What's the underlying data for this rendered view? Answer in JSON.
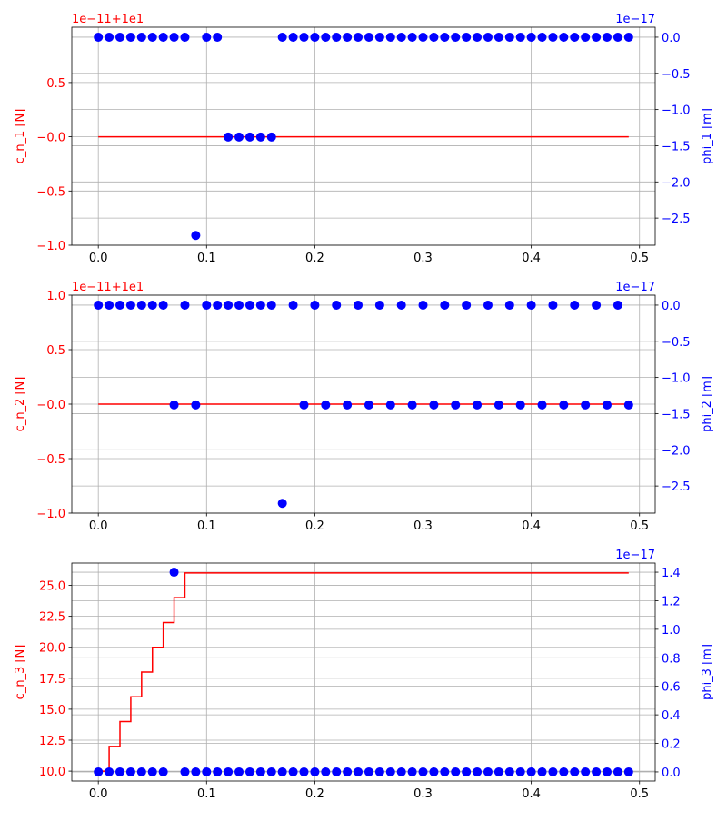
{
  "chart_data": [
    {
      "type": "line",
      "x": [
        0,
        0.01,
        0.02,
        0.03,
        0.04,
        0.05,
        0.06,
        0.07,
        0.08,
        0.09,
        0.1,
        0.11,
        0.12,
        0.13,
        0.14,
        0.15,
        0.16,
        0.17,
        0.18,
        0.19,
        0.2,
        0.21,
        0.22,
        0.23,
        0.24,
        0.25,
        0.26,
        0.27,
        0.28,
        0.29,
        0.3,
        0.31,
        0.32,
        0.33,
        0.34,
        0.35,
        0.36,
        0.37,
        0.38,
        0.39,
        0.4,
        0.41,
        0.42,
        0.43,
        0.44,
        0.45,
        0.46,
        0.47,
        0.48,
        0.49
      ],
      "ylabel": "c_n_1 [N]",
      "y2label": "phi_1 [m]",
      "y_offset_text": "1e−11+1e1",
      "y2_offset_text": "1e−17",
      "xlim": [
        -0.0245,
        0.5145
      ],
      "xticks": [
        {
          "value": 0,
          "label": "0.0"
        },
        0.1,
        0.2,
        0.3,
        0.4,
        0.5
      ],
      "ylim": [
        -1,
        1.01
      ],
      "yticks": [
        {
          "value": -1,
          "label": "−1.0"
        },
        {
          "value": -0.5,
          "label": "−0.5"
        },
        {
          "value": 0,
          "label": "−0.0"
        },
        0.5
      ],
      "y2lim": [
        -2.875,
        0.1375
      ],
      "y2ticks": [
        {
          "value": -2.5,
          "label": "−2.5"
        },
        {
          "value": -2,
          "label": "−2.0"
        },
        {
          "value": -1.5,
          "label": "−1.5"
        },
        {
          "value": -1,
          "label": "−1.0"
        },
        {
          "value": -0.5,
          "label": "−0.5"
        },
        {
          "value": 0,
          "label": "0.0"
        }
      ],
      "grid": true,
      "series": [
        {
          "color": "#ff0000",
          "drawstyle": "default",
          "values": [
            0,
            0,
            0,
            0,
            0,
            0,
            0,
            0,
            0,
            0,
            0,
            0,
            0,
            0,
            0,
            0,
            0,
            0,
            0,
            0,
            0,
            0,
            0,
            0,
            0,
            0,
            0,
            0,
            0,
            0,
            0,
            0,
            0,
            0,
            0,
            0,
            0,
            0,
            0,
            0,
            0,
            0,
            0,
            0,
            0,
            0,
            0,
            0,
            0,
            0
          ]
        },
        {
          "color": "#0000ff",
          "axis": "y2",
          "marker": "o",
          "values": [
            0,
            0,
            0,
            0,
            0,
            0,
            0,
            0,
            0,
            -2.74,
            0,
            0,
            -1.38,
            -1.38,
            -1.38,
            -1.38,
            -1.38,
            0,
            0,
            0,
            0,
            0,
            0,
            0,
            0,
            0,
            0,
            0,
            0,
            0,
            0,
            0,
            0,
            0,
            0,
            0,
            0,
            0,
            0,
            0,
            0,
            0,
            0,
            0,
            0,
            0,
            0,
            0,
            0,
            0
          ]
        }
      ]
    },
    {
      "type": "line",
      "x": [
        0,
        0.01,
        0.02,
        0.03,
        0.04,
        0.05,
        0.06,
        0.07,
        0.08,
        0.09,
        0.1,
        0.11,
        0.12,
        0.13,
        0.14,
        0.15,
        0.16,
        0.17,
        0.18,
        0.19,
        0.2,
        0.21,
        0.22,
        0.23,
        0.24,
        0.25,
        0.26,
        0.27,
        0.28,
        0.29,
        0.3,
        0.31,
        0.32,
        0.33,
        0.34,
        0.35,
        0.36,
        0.37,
        0.38,
        0.39,
        0.4,
        0.41,
        0.42,
        0.43,
        0.44,
        0.45,
        0.46,
        0.47,
        0.48,
        0.49
      ],
      "ylabel": "c_n_2 [N]",
      "y2label": "phi_2 [m]",
      "y_offset_text": "1e−11+1e1",
      "y2_offset_text": "1e−17",
      "xlim": [
        -0.0245,
        0.5145
      ],
      "xticks": [
        {
          "value": 0,
          "label": "0.0"
        },
        0.1,
        0.2,
        0.3,
        0.4,
        0.5
      ],
      "ylim": [
        -1,
        1
      ],
      "yticks": [
        {
          "value": -1,
          "label": "−1.0"
        },
        {
          "value": -0.5,
          "label": "−0.5"
        },
        {
          "value": 0,
          "label": "−0.0"
        },
        0.5,
        {
          "value": 1,
          "label": "1.0"
        }
      ],
      "y2lim": [
        -2.875,
        0.1375
      ],
      "y2ticks": [
        {
          "value": -2.5,
          "label": "−2.5"
        },
        {
          "value": -2,
          "label": "−2.0"
        },
        {
          "value": -1.5,
          "label": "−1.5"
        },
        {
          "value": -1,
          "label": "−1.0"
        },
        {
          "value": -0.5,
          "label": "−0.5"
        },
        {
          "value": 0,
          "label": "0.0"
        }
      ],
      "grid": true,
      "series": [
        {
          "color": "#ff0000",
          "drawstyle": "default",
          "values": [
            0,
            0,
            0,
            0,
            0,
            0,
            0,
            0,
            0,
            0,
            0,
            0,
            0,
            0,
            0,
            0,
            0,
            0,
            0,
            0,
            0,
            0,
            0,
            0,
            0,
            0,
            0,
            0,
            0,
            0,
            0,
            0,
            0,
            0,
            0,
            0,
            0,
            0,
            0,
            0,
            0,
            0,
            0,
            0,
            0,
            0,
            0,
            0,
            0,
            0
          ]
        },
        {
          "color": "#0000ff",
          "axis": "y2",
          "marker": "o",
          "values": [
            0,
            0,
            0,
            0,
            0,
            0,
            0,
            -1.38,
            0,
            -1.38,
            0,
            0,
            0,
            0,
            0,
            0,
            0,
            -2.74,
            0,
            -1.38,
            0,
            -1.38,
            0,
            -1.38,
            0,
            -1.38,
            0,
            -1.38,
            0,
            -1.38,
            0,
            -1.38,
            0,
            -1.38,
            0,
            -1.38,
            0,
            -1.38,
            0,
            -1.38,
            0,
            -1.38,
            0,
            -1.38,
            0,
            -1.38,
            0,
            -1.38,
            0,
            -1.38
          ]
        }
      ]
    },
    {
      "type": "line",
      "x": [
        0,
        0.01,
        0.02,
        0.03,
        0.04,
        0.05,
        0.06,
        0.07,
        0.08,
        0.09,
        0.1,
        0.11,
        0.12,
        0.13,
        0.14,
        0.15,
        0.16,
        0.17,
        0.18,
        0.19,
        0.2,
        0.21,
        0.22,
        0.23,
        0.24,
        0.25,
        0.26,
        0.27,
        0.28,
        0.29,
        0.3,
        0.31,
        0.32,
        0.33,
        0.34,
        0.35,
        0.36,
        0.37,
        0.38,
        0.39,
        0.4,
        0.41,
        0.42,
        0.43,
        0.44,
        0.45,
        0.46,
        0.47,
        0.48,
        0.49
      ],
      "ylabel": "c_n_3 [N]",
      "y2label": "phi_3 [m]",
      "y2_offset_text": "1e−17",
      "xlim": [
        -0.0245,
        0.5145
      ],
      "xticks": [
        {
          "value": 0,
          "label": "0.0"
        },
        0.1,
        0.2,
        0.3,
        0.4,
        0.5
      ],
      "ylim": [
        9.2,
        26.8
      ],
      "yticks": [
        {
          "value": 10,
          "label": "10.0"
        },
        12.5,
        {
          "value": 15,
          "label": "15.0"
        },
        17.5,
        {
          "value": 20,
          "label": "20.0"
        },
        22.5,
        {
          "value": 25,
          "label": "25.0"
        }
      ],
      "y2lim": [
        -0.064,
        1.464
      ],
      "y2ticks": [
        {
          "value": 0,
          "label": "0.0"
        },
        0.2,
        0.4,
        0.6,
        0.8,
        {
          "value": 1,
          "label": "1.0"
        },
        1.2,
        1.4
      ],
      "grid": true,
      "series": [
        {
          "color": "#ff0000",
          "drawstyle": "steps-post",
          "values": [
            10,
            12,
            14,
            16,
            18,
            20,
            22,
            24,
            26,
            26,
            26,
            26,
            26,
            26,
            26,
            26,
            26,
            26,
            26,
            26,
            26,
            26,
            26,
            26,
            26,
            26,
            26,
            26,
            26,
            26,
            26,
            26,
            26,
            26,
            26,
            26,
            26,
            26,
            26,
            26,
            26,
            26,
            26,
            26,
            26,
            26,
            26,
            26,
            26,
            26
          ]
        },
        {
          "color": "#0000ff",
          "axis": "y2",
          "marker": "o",
          "values": [
            0,
            0,
            0,
            0,
            0,
            0,
            0,
            1.4,
            0,
            0,
            0,
            0,
            0,
            0,
            0,
            0,
            0,
            0,
            0,
            0,
            0,
            0,
            0,
            0,
            0,
            0,
            0,
            0,
            0,
            0,
            0,
            0,
            0,
            0,
            0,
            0,
            0,
            0,
            0,
            0,
            0,
            0,
            0,
            0,
            0,
            0,
            0,
            0,
            0,
            0
          ]
        }
      ]
    }
  ]
}
